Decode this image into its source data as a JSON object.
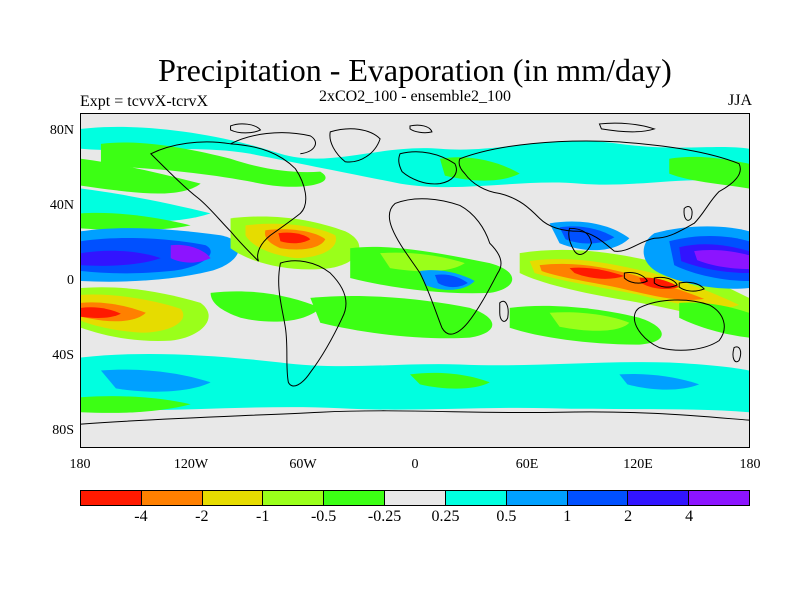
{
  "title": "Precipitation - Evaporation (in mm/day)",
  "subtitle_left": "Expt = tcvvX-tcrvX",
  "subtitle_center": "2xCO2_100 - ensemble2_100",
  "subtitle_right": "JJA",
  "lat_ticks": [
    "80N",
    "40N",
    "0",
    "40S",
    "80S"
  ],
  "lon_ticks": [
    "180",
    "120W",
    "60W",
    "0",
    "60E",
    "120E",
    "180"
  ],
  "colorbar": {
    "colors": [
      "#ff1a00",
      "#ff8000",
      "#e6dc00",
      "#9aff1a",
      "#3cff14",
      "#e8e8e8",
      "#00ffe0",
      "#00a0ff",
      "#0050ff",
      "#3214ff",
      "#8c14ff"
    ],
    "labels": [
      "-4",
      "-2",
      "-1",
      "-0.5",
      "-0.25",
      "0.25",
      "0.5",
      "1",
      "2",
      "4"
    ]
  }
}
